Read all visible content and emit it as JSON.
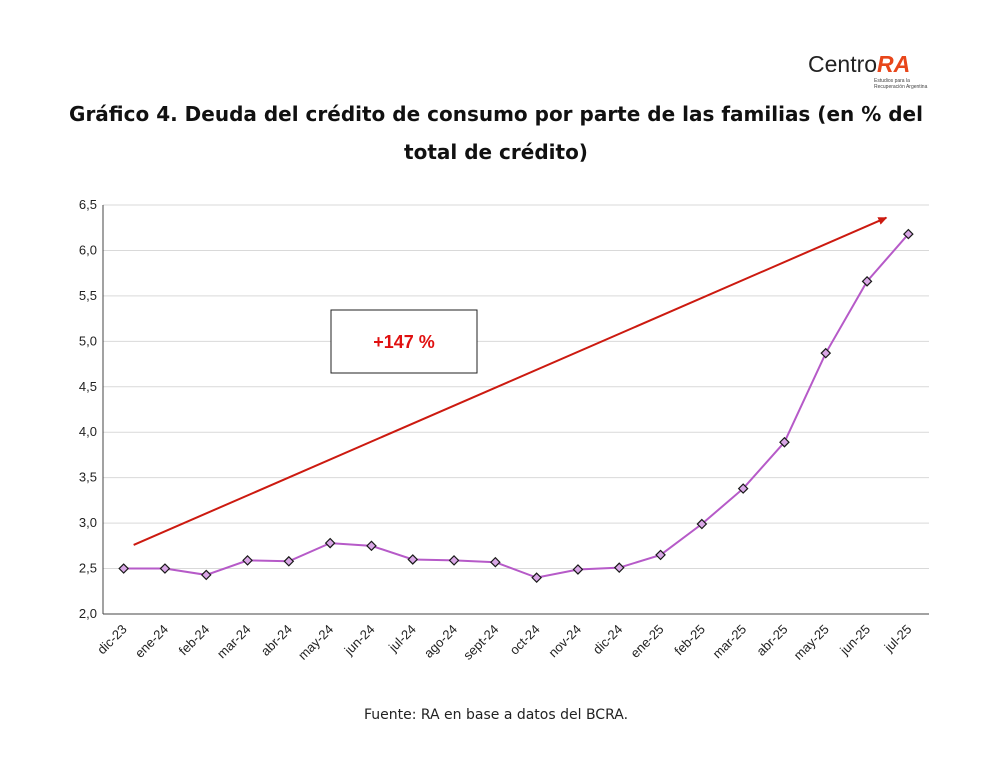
{
  "logo": {
    "word_a": "Centro",
    "word_b": "RA",
    "tagline": "Estudios para la Recuperación Argentina",
    "accent_color": "#e8461a"
  },
  "title": "Gráfico 4. Deuda del crédito de consumo por parte de las familias (en % del total de crédito)",
  "source": "Fuente: RA en base a datos del BCRA.",
  "chart_data": {
    "type": "line",
    "title": "Gráfico 4. Deuda del crédito de consumo por parte de las familias (en % del total de crédito)",
    "xlabel": "",
    "ylabel": "",
    "categories": [
      "dic-23",
      "ene-24",
      "feb-24",
      "mar-24",
      "abr-24",
      "may-24",
      "jun-24",
      "jul-24",
      "ago-24",
      "sept-24",
      "oct-24",
      "nov-24",
      "dic-24",
      "ene-25",
      "feb-25",
      "mar-25",
      "abr-25",
      "may-25",
      "jun-25",
      "jul-25"
    ],
    "series": [
      {
        "values": [
          2.5,
          2.5,
          2.43,
          2.59,
          2.58,
          2.78,
          2.75,
          2.6,
          2.59,
          2.57,
          2.4,
          2.49,
          2.51,
          2.65,
          2.99,
          3.38,
          3.89,
          4.87,
          5.66,
          6.18
        ],
        "color": "#b65ac8",
        "marker": "diamond",
        "marker_fill": "#d9a7e6"
      }
    ],
    "ylim": [
      2.0,
      6.5
    ],
    "yticks": [
      "2,0",
      "2,5",
      "3,0",
      "3,5",
      "4,0",
      "4,5",
      "5,0",
      "5,5",
      "6,0",
      "6,5"
    ],
    "ytick_values": [
      2.0,
      2.5,
      3.0,
      3.5,
      4.0,
      4.5,
      5.0,
      5.5,
      6.0,
      6.5
    ],
    "grid": true,
    "legend": "none",
    "annotations": [
      {
        "text": "+147 %",
        "color": "#e01010",
        "arrow_color": "#cc1a10",
        "arrow_from": {
          "x": "dic-23",
          "y": 2.76
        },
        "arrow_to": {
          "x": "jul-25",
          "y": 6.36
        }
      }
    ]
  }
}
